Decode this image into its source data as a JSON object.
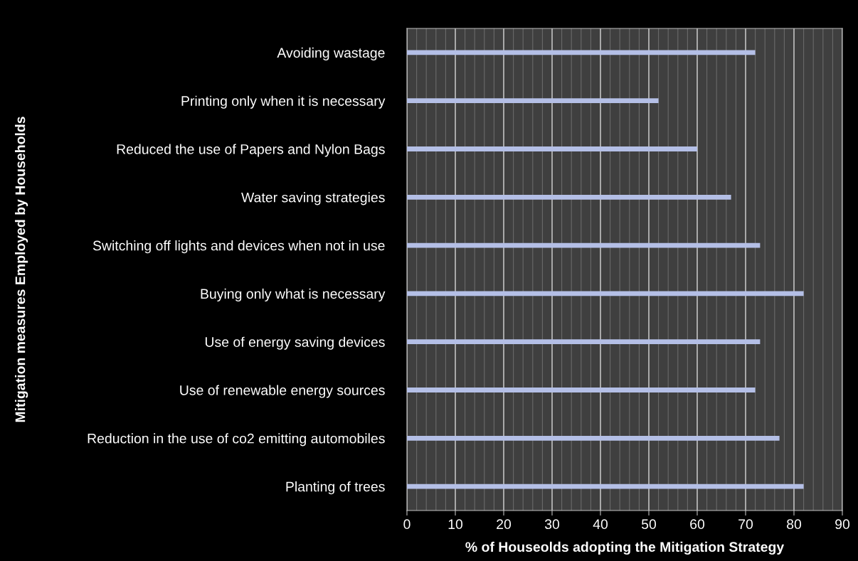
{
  "chart_data": {
    "type": "bar",
    "orientation": "horizontal",
    "categories": [
      "Avoiding wastage",
      "Printing only when it is necessary",
      "Reduced the use of Papers and Nylon Bags",
      "Water saving strategies",
      "Switching off lights and devices when not in use",
      "Buying only what is necessary",
      "Use of energy saving devices",
      "Use of renewable energy sources",
      "Reduction in the use of co2 emitting automobiles",
      "Planting of trees"
    ],
    "values": [
      72,
      52,
      60,
      67,
      73,
      82,
      73,
      72,
      77,
      82
    ],
    "color": "#b4bfe6",
    "xlim": [
      0,
      90
    ],
    "xticks": [
      0,
      10,
      20,
      30,
      40,
      50,
      60,
      70,
      80,
      90
    ],
    "xlabel": "% of Houseolds adopting the Mitigation Strategy",
    "ylabel": "Mitigation measures Employed by Households",
    "grid": "x"
  }
}
